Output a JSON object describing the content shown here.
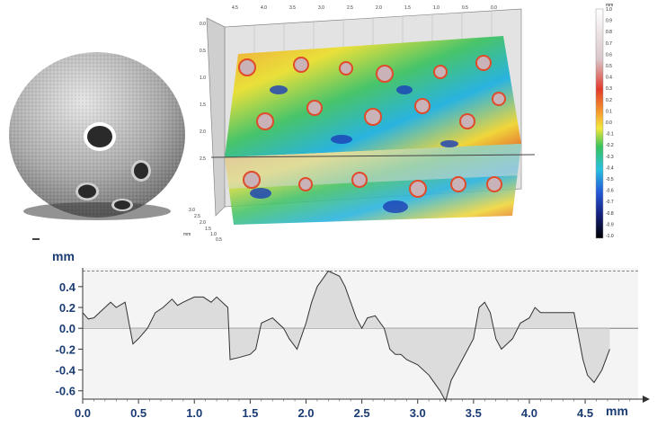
{
  "colorbar": {
    "labels": [
      "mm",
      "1.0",
      "0.9",
      "0.8",
      "0.7",
      "0.6",
      "0.5",
      "0.4",
      "0.3",
      "0.2",
      "0.1",
      "0.0",
      "-0.1",
      "-0.2",
      "-0.3",
      "-0.4",
      "-0.5",
      "-0.6",
      "-0.7",
      "-0.8",
      "-0.9",
      "-1.0"
    ]
  },
  "surface": {
    "top_axis": [
      "4.5",
      "4.0",
      "3.5",
      "3.0",
      "2.5",
      "2.0",
      "1.5",
      "1.0",
      "0.5",
      "0.0"
    ],
    "left_axis": [
      "0.0",
      "0.5",
      "1.0",
      "1.5",
      "2.0",
      "2.5"
    ],
    "front_axis": [
      "3.0",
      "2.5",
      "2.0",
      "1.5",
      "1.0",
      "0.5",
      "mm"
    ]
  },
  "chart_data": {
    "type": "line",
    "ylabel": "mm",
    "xlabel": "mm",
    "xlim": [
      0,
      4.95
    ],
    "ylim": [
      -0.68,
      0.58
    ],
    "xticks": [
      "0.0",
      "0.5",
      "1.0",
      "1.5",
      "2.0",
      "2.5",
      "3.0",
      "3.5",
      "4.0",
      "4.5"
    ],
    "yticks": [
      "0.4",
      "0.2",
      "0.0",
      "-0.2",
      "-0.4",
      "-0.6"
    ],
    "series": [
      {
        "x": [
          0.0,
          0.05,
          0.1,
          0.2,
          0.25,
          0.3,
          0.38,
          0.45,
          0.5,
          0.58,
          0.65,
          0.72,
          0.8,
          0.85,
          0.9,
          1.0,
          1.08,
          1.15,
          1.2,
          1.3,
          1.32,
          1.4,
          1.5,
          1.55,
          1.6,
          1.7,
          1.8,
          1.85,
          1.92,
          2.0,
          2.05,
          2.1,
          2.2,
          2.3,
          2.35,
          2.45,
          2.5,
          2.55,
          2.62,
          2.7,
          2.75,
          2.8,
          2.85,
          2.9,
          3.0,
          3.1,
          3.2,
          3.25,
          3.3,
          3.4,
          3.5,
          3.55,
          3.6,
          3.65,
          3.7,
          3.75,
          3.8,
          3.85,
          3.92,
          4.0,
          4.05,
          4.1,
          4.2,
          4.3,
          4.4,
          4.48,
          4.52,
          4.58,
          4.65,
          4.72
        ],
        "y": [
          0.15,
          0.09,
          0.1,
          0.2,
          0.25,
          0.2,
          0.25,
          -0.15,
          -0.1,
          0.0,
          0.15,
          0.2,
          0.28,
          0.22,
          0.25,
          0.3,
          0.3,
          0.25,
          0.3,
          0.2,
          -0.3,
          -0.28,
          -0.25,
          -0.2,
          0.05,
          0.1,
          0.0,
          -0.1,
          -0.2,
          0.05,
          0.25,
          0.4,
          0.55,
          0.5,
          0.4,
          0.1,
          0.0,
          0.1,
          0.12,
          0.0,
          -0.2,
          -0.25,
          -0.25,
          -0.3,
          -0.35,
          -0.45,
          -0.6,
          -0.7,
          -0.5,
          -0.3,
          -0.1,
          0.2,
          0.25,
          0.15,
          -0.1,
          -0.2,
          -0.15,
          -0.1,
          0.05,
          0.1,
          0.2,
          0.15,
          0.15,
          0.15,
          0.15,
          -0.3,
          -0.45,
          -0.52,
          -0.4,
          -0.2
        ]
      }
    ]
  }
}
